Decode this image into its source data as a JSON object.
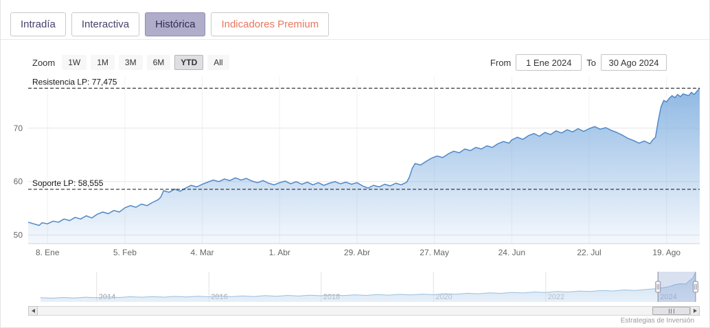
{
  "app": {
    "credits": "Estrategias de Inversión"
  },
  "tabs": {
    "items": [
      {
        "label": "Intradía",
        "selected": false
      },
      {
        "label": "Interactiva",
        "selected": false
      },
      {
        "label": "Histórica",
        "selected": true
      },
      {
        "label": "Indicadores Premium",
        "selected": false,
        "accent": true
      }
    ]
  },
  "toolbar": {
    "zoom_label": "Zoom",
    "buttons": [
      {
        "label": "1W",
        "selected": false
      },
      {
        "label": "1M",
        "selected": false
      },
      {
        "label": "3M",
        "selected": false
      },
      {
        "label": "6M",
        "selected": false
      },
      {
        "label": "YTD",
        "selected": true
      },
      {
        "label": "All",
        "selected": false
      }
    ],
    "from_label": "From",
    "from_value": "1 Ene 2024",
    "to_label": "To",
    "to_value": "30 Ago 2024"
  },
  "colors": {
    "line": "#4f87c7",
    "area_base": "#7cacdf",
    "nav_line": "#9abede",
    "nav_base": "#c9def2",
    "selected_tab_bg": "#b0adca",
    "premium_accent": "#e8765e",
    "mask": "rgba(102,133,194,0.25)"
  },
  "chart_data": {
    "type": "area",
    "title": "",
    "x_axis": {
      "unit": "days since 1 Ene 2024",
      "range": [
        0,
        243
      ],
      "ticks": [
        {
          "d": 7,
          "label": "8. Ene"
        },
        {
          "d": 35,
          "label": "5. Feb"
        },
        {
          "d": 63,
          "label": "4. Mar"
        },
        {
          "d": 91,
          "label": "1. Abr"
        },
        {
          "d": 119,
          "label": "29. Abr"
        },
        {
          "d": 147,
          "label": "27. May"
        },
        {
          "d": 175,
          "label": "24. Jun"
        },
        {
          "d": 203,
          "label": "22. Jul"
        },
        {
          "d": 231,
          "label": "19. Ago"
        }
      ]
    },
    "y_axis": {
      "ticks": [
        50,
        60,
        70
      ],
      "range": [
        48.4,
        79.6
      ]
    },
    "annotations": [
      {
        "name": "resistance-line",
        "label": "Resistencia LP: 77,475",
        "value": 77.475
      },
      {
        "name": "support-line",
        "label": "Soporte LP: 58,555",
        "value": 58.555
      }
    ],
    "points": [
      [
        0,
        52.4
      ],
      [
        2,
        52.1
      ],
      [
        4,
        51.8
      ],
      [
        5,
        52.3
      ],
      [
        7,
        52.1
      ],
      [
        9,
        52.6
      ],
      [
        11,
        52.4
      ],
      [
        13,
        53.0
      ],
      [
        15,
        52.7
      ],
      [
        17,
        53.3
      ],
      [
        19,
        53.0
      ],
      [
        21,
        53.6
      ],
      [
        23,
        53.2
      ],
      [
        25,
        53.9
      ],
      [
        27,
        54.3
      ],
      [
        29,
        54.0
      ],
      [
        31,
        54.6
      ],
      [
        33,
        54.3
      ],
      [
        35,
        55.1
      ],
      [
        37,
        55.5
      ],
      [
        39,
        55.2
      ],
      [
        41,
        55.8
      ],
      [
        43,
        55.5
      ],
      [
        45,
        56.1
      ],
      [
        47,
        56.6
      ],
      [
        48,
        57.1
      ],
      [
        49,
        58.3
      ],
      [
        51,
        58.0
      ],
      [
        53,
        58.6
      ],
      [
        55,
        58.2
      ],
      [
        57,
        58.8
      ],
      [
        59,
        59.3
      ],
      [
        61,
        59.0
      ],
      [
        63,
        59.5
      ],
      [
        65,
        59.9
      ],
      [
        67,
        60.3
      ],
      [
        69,
        60.0
      ],
      [
        71,
        60.5
      ],
      [
        73,
        60.2
      ],
      [
        75,
        60.7
      ],
      [
        77,
        60.3
      ],
      [
        79,
        60.6
      ],
      [
        81,
        60.1
      ],
      [
        83,
        59.8
      ],
      [
        85,
        60.2
      ],
      [
        87,
        59.7
      ],
      [
        89,
        59.4
      ],
      [
        91,
        59.8
      ],
      [
        93,
        60.1
      ],
      [
        95,
        59.6
      ],
      [
        97,
        60.0
      ],
      [
        99,
        59.5
      ],
      [
        101,
        59.9
      ],
      [
        103,
        59.4
      ],
      [
        105,
        59.8
      ],
      [
        107,
        59.3
      ],
      [
        109,
        59.7
      ],
      [
        111,
        60.0
      ],
      [
        113,
        59.6
      ],
      [
        115,
        59.9
      ],
      [
        117,
        59.5
      ],
      [
        119,
        59.8
      ],
      [
        121,
        59.2
      ],
      [
        123,
        58.8
      ],
      [
        125,
        59.3
      ],
      [
        127,
        59.0
      ],
      [
        129,
        59.5
      ],
      [
        131,
        59.2
      ],
      [
        133,
        59.7
      ],
      [
        135,
        59.4
      ],
      [
        137,
        59.9
      ],
      [
        138,
        60.9
      ],
      [
        139,
        62.5
      ],
      [
        140,
        63.4
      ],
      [
        142,
        63.1
      ],
      [
        144,
        63.8
      ],
      [
        146,
        64.4
      ],
      [
        148,
        64.8
      ],
      [
        150,
        64.5
      ],
      [
        152,
        65.2
      ],
      [
        154,
        65.7
      ],
      [
        156,
        65.4
      ],
      [
        158,
        66.1
      ],
      [
        160,
        65.8
      ],
      [
        162,
        66.4
      ],
      [
        164,
        66.1
      ],
      [
        166,
        66.7
      ],
      [
        168,
        66.4
      ],
      [
        170,
        67.1
      ],
      [
        172,
        67.5
      ],
      [
        174,
        67.2
      ],
      [
        175,
        67.8
      ],
      [
        177,
        68.3
      ],
      [
        179,
        67.9
      ],
      [
        181,
        68.6
      ],
      [
        183,
        69.0
      ],
      [
        185,
        68.5
      ],
      [
        187,
        69.2
      ],
      [
        189,
        68.8
      ],
      [
        191,
        69.5
      ],
      [
        193,
        69.1
      ],
      [
        195,
        69.7
      ],
      [
        197,
        69.3
      ],
      [
        199,
        69.9
      ],
      [
        201,
        69.4
      ],
      [
        203,
        69.9
      ],
      [
        205,
        70.3
      ],
      [
        207,
        69.8
      ],
      [
        209,
        70.1
      ],
      [
        211,
        69.6
      ],
      [
        213,
        69.2
      ],
      [
        215,
        68.7
      ],
      [
        217,
        68.1
      ],
      [
        219,
        67.7
      ],
      [
        221,
        67.2
      ],
      [
        223,
        67.6
      ],
      [
        225,
        67.1
      ],
      [
        226,
        67.8
      ],
      [
        227,
        68.3
      ],
      [
        228,
        71.4
      ],
      [
        229,
        74.0
      ],
      [
        230,
        75.2
      ],
      [
        231,
        74.9
      ],
      [
        232,
        75.6
      ],
      [
        233,
        76.1
      ],
      [
        234,
        75.7
      ],
      [
        235,
        76.3
      ],
      [
        236,
        75.9
      ],
      [
        237,
        76.4
      ],
      [
        239,
        76.1
      ],
      [
        240,
        76.7
      ],
      [
        241,
        76.3
      ],
      [
        242,
        76.9
      ],
      [
        243,
        77.4
      ]
    ],
    "navigator": {
      "x_ticks": [
        2014,
        2016,
        2018,
        2020,
        2022,
        2024
      ],
      "xlim": [
        2013.0,
        2024.67
      ],
      "ylim": [
        30,
        80
      ],
      "selection": [
        2024.0,
        2024.67
      ],
      "points": [
        [
          2013.0,
          37.0
        ],
        [
          2013.2,
          36.2
        ],
        [
          2013.4,
          37.4
        ],
        [
          2013.6,
          36.6
        ],
        [
          2013.8,
          37.8
        ],
        [
          2014.0,
          37.0
        ],
        [
          2014.2,
          38.2
        ],
        [
          2014.4,
          37.4
        ],
        [
          2014.6,
          38.6
        ],
        [
          2014.8,
          37.8
        ],
        [
          2015.0,
          38.8
        ],
        [
          2015.2,
          37.9
        ],
        [
          2015.4,
          39.2
        ],
        [
          2015.6,
          38.2
        ],
        [
          2015.8,
          39.5
        ],
        [
          2016.0,
          38.5
        ],
        [
          2016.2,
          39.8
        ],
        [
          2016.4,
          38.8
        ],
        [
          2016.6,
          40.0
        ],
        [
          2016.8,
          39.0
        ],
        [
          2017.0,
          40.4
        ],
        [
          2017.2,
          39.4
        ],
        [
          2017.4,
          40.8
        ],
        [
          2017.6,
          39.8
        ],
        [
          2017.8,
          41.2
        ],
        [
          2018.0,
          40.2
        ],
        [
          2018.2,
          41.5
        ],
        [
          2018.4,
          40.4
        ],
        [
          2018.6,
          41.8
        ],
        [
          2018.8,
          40.8
        ],
        [
          2019.0,
          42.2
        ],
        [
          2019.2,
          41.2
        ],
        [
          2019.4,
          42.6
        ],
        [
          2019.6,
          41.6
        ],
        [
          2019.8,
          43.0
        ],
        [
          2020.0,
          42.0
        ],
        [
          2020.2,
          43.6
        ],
        [
          2020.4,
          42.8
        ],
        [
          2020.6,
          44.3
        ],
        [
          2020.8,
          43.5
        ],
        [
          2021.0,
          45.0
        ],
        [
          2021.2,
          44.2
        ],
        [
          2021.4,
          45.8
        ],
        [
          2021.6,
          44.9
        ],
        [
          2021.8,
          46.5
        ],
        [
          2022.0,
          45.7
        ],
        [
          2022.2,
          47.3
        ],
        [
          2022.4,
          46.5
        ],
        [
          2022.6,
          48.1
        ],
        [
          2022.8,
          47.3
        ],
        [
          2023.0,
          49.0
        ],
        [
          2023.2,
          48.2
        ],
        [
          2023.4,
          49.9
        ],
        [
          2023.6,
          49.1
        ],
        [
          2023.8,
          50.8
        ],
        [
          2024.0,
          52.3
        ],
        [
          2024.1,
          53.6
        ],
        [
          2024.2,
          55.3
        ],
        [
          2024.3,
          58.5
        ],
        [
          2024.4,
          60.1
        ],
        [
          2024.5,
          59.7
        ],
        [
          2024.55,
          64.4
        ],
        [
          2024.6,
          67.9
        ],
        [
          2024.63,
          70.2
        ],
        [
          2024.66,
          77.5
        ]
      ]
    }
  }
}
